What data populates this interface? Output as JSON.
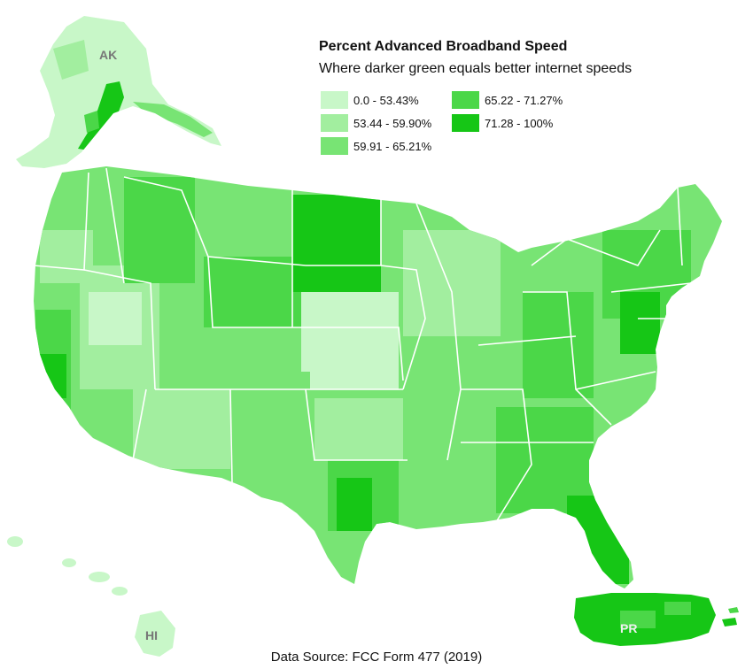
{
  "title": "Percent Advanced Broadband Speed",
  "subtitle": "Where darker green equals better internet speeds",
  "legend": [
    {
      "label": "0.0 - 53.43%",
      "color": "#c8f7c8"
    },
    {
      "label": "53.44 - 59.90%",
      "color": "#a2ee9f"
    },
    {
      "label": "59.91 - 65.21%",
      "color": "#78e474"
    },
    {
      "label": "65.22 - 71.27%",
      "color": "#4bd748"
    },
    {
      "label": "71.28 - 100%",
      "color": "#16c616"
    }
  ],
  "map_labels": {
    "ak": "AK",
    "hi": "HI",
    "pr": "PR"
  },
  "source": "Data Source: FCC Form 477 (2019)",
  "colors": {
    "border": "#ffffff",
    "background": "#ffffff"
  }
}
